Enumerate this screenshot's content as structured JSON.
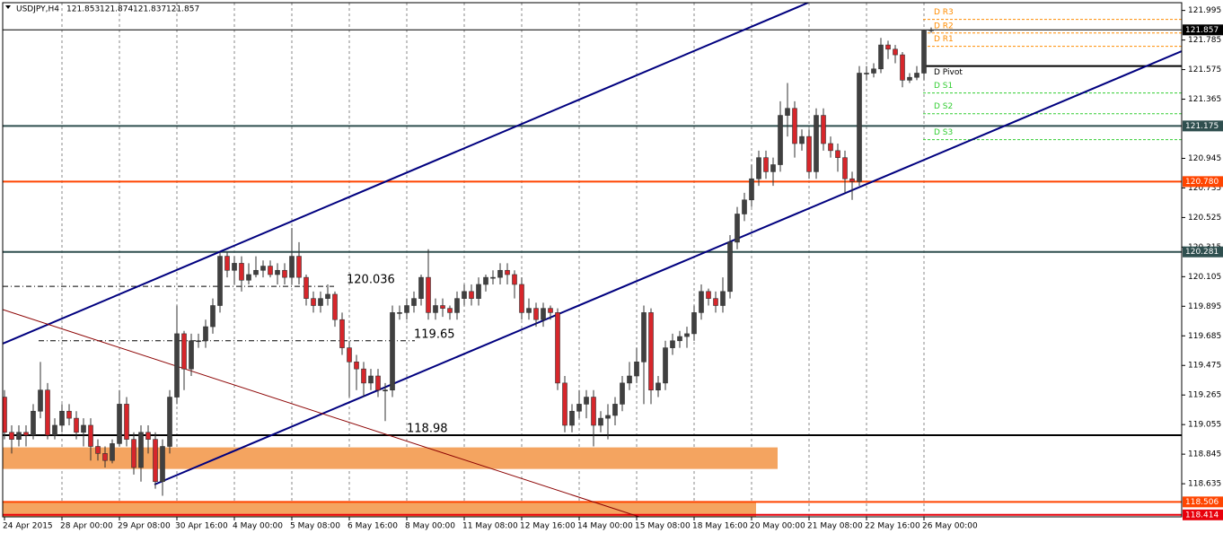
{
  "chart_data": {
    "type": "candlestick",
    "title": "USDJPY,H4",
    "categories": [
      "24 Apr 2015",
      null,
      null,
      null,
      null,
      null,
      null,
      null,
      "28 Apr 00:00",
      null,
      null,
      null,
      null,
      null,
      null,
      null,
      "29 Apr 08:00",
      null,
      null,
      null,
      null,
      null,
      null,
      null,
      "30 Apr 16:00",
      null,
      null,
      null,
      null,
      null,
      null,
      null,
      "4 May 00:00",
      null,
      null,
      null,
      null,
      null,
      null,
      null,
      "5 May 08:00",
      null,
      null,
      null,
      null,
      null,
      null,
      null,
      "6 May 16:00",
      null,
      null,
      null,
      null,
      null,
      null,
      null,
      "8 May 00:00",
      null,
      null,
      null,
      null,
      null,
      null,
      null,
      "11 May 08:00",
      null,
      null,
      null,
      null,
      null,
      null,
      null,
      "12 May 16:00",
      null,
      null,
      null,
      null,
      null,
      null,
      null,
      "14 May 00:00",
      null,
      null,
      null,
      null,
      null,
      null,
      null,
      "15 May 08:00",
      null,
      null,
      null,
      null,
      null,
      null,
      null,
      "18 May 16:00",
      null,
      null,
      null,
      null,
      null,
      null,
      null,
      "20 May 00:00",
      null,
      null,
      null,
      null,
      null,
      null,
      null,
      "21 May 08:00",
      null,
      null,
      null,
      null,
      null,
      null,
      null,
      "22 May 16:00",
      null,
      null,
      null,
      null,
      null,
      null,
      null,
      "26 May 00:00",
      null
    ],
    "open": [
      119.25,
      119.0,
      118.95,
      119.0,
      118.98,
      119.15,
      119.3,
      118.98,
      119.05,
      119.15,
      119.1,
      119.0,
      119.05,
      118.9,
      118.85,
      118.8,
      118.92,
      119.2,
      118.95,
      118.75,
      119.0,
      118.95,
      118.65,
      118.9,
      119.25,
      119.7,
      119.45,
      119.65,
      119.65,
      119.75,
      119.9,
      120.25,
      120.15,
      120.2,
      120.08,
      120.12,
      120.15,
      120.18,
      120.12,
      120.15,
      120.1,
      120.25,
      120.1,
      119.95,
      119.9,
      119.95,
      119.98,
      119.8,
      119.6,
      119.5,
      119.45,
      119.35,
      119.4,
      119.3,
      119.3,
      119.85,
      119.85,
      119.9,
      119.95,
      120.1,
      119.85,
      119.9,
      119.88,
      119.85,
      119.95,
      120.0,
      119.95,
      120.05,
      120.1,
      120.1,
      120.15,
      120.12,
      120.05,
      119.85,
      119.88,
      119.8,
      119.88,
      119.85,
      119.35,
      119.05,
      119.15,
      119.2,
      119.25,
      119.05,
      119.1,
      119.12,
      119.2,
      119.35,
      119.4,
      119.5,
      119.85,
      119.3,
      119.35,
      119.6,
      119.65,
      119.68,
      119.7,
      119.85,
      120.0,
      119.95,
      119.9,
      120.0,
      120.35,
      120.55,
      120.65,
      120.8,
      120.95,
      120.85,
      120.9,
      121.25,
      121.3,
      121.05,
      121.1,
      120.85,
      121.25,
      121.05,
      121.0,
      120.95,
      120.8,
      120.78,
      121.55,
      121.55,
      121.58,
      121.75,
      121.72,
      121.68,
      121.5,
      121.52,
      121.55,
      121.853
    ],
    "high": [
      119.3,
      119.05,
      119.05,
      119.05,
      119.2,
      119.5,
      119.35,
      119.1,
      119.2,
      119.2,
      119.15,
      119.1,
      119.1,
      118.95,
      118.9,
      118.95,
      119.3,
      119.25,
      119.0,
      119.05,
      119.05,
      119.0,
      118.95,
      119.3,
      119.9,
      119.72,
      119.7,
      119.7,
      119.8,
      119.95,
      120.28,
      120.28,
      120.25,
      120.25,
      120.2,
      120.25,
      120.22,
      120.22,
      120.2,
      120.2,
      120.45,
      120.35,
      120.12,
      120.0,
      120.0,
      120.05,
      120.0,
      119.85,
      119.65,
      119.55,
      119.5,
      119.45,
      119.45,
      119.35,
      119.9,
      119.9,
      119.95,
      120.0,
      120.12,
      120.3,
      119.95,
      119.95,
      119.9,
      120.0,
      120.05,
      120.05,
      120.1,
      120.12,
      120.15,
      120.2,
      120.2,
      120.15,
      120.1,
      119.95,
      119.92,
      119.92,
      119.9,
      119.88,
      119.4,
      119.2,
      119.3,
      119.3,
      119.3,
      119.15,
      119.2,
      119.25,
      119.4,
      119.5,
      119.6,
      119.9,
      119.88,
      119.4,
      119.65,
      119.7,
      119.72,
      119.75,
      119.9,
      120.05,
      120.02,
      120.0,
      120.1,
      120.4,
      120.6,
      120.7,
      120.9,
      121.0,
      121.0,
      120.95,
      121.35,
      121.48,
      121.35,
      121.15,
      121.15,
      121.3,
      121.3,
      121.1,
      121.05,
      121.0,
      120.85,
      121.6,
      121.6,
      121.62,
      121.8,
      121.78,
      121.75,
      121.7,
      121.55,
      121.6,
      121.86,
      121.874
    ],
    "low": [
      118.95,
      118.85,
      118.9,
      118.9,
      118.95,
      119.1,
      118.95,
      118.95,
      119.0,
      119.05,
      118.95,
      118.9,
      118.8,
      118.8,
      118.75,
      118.78,
      118.9,
      118.9,
      118.7,
      118.65,
      118.85,
      118.6,
      118.55,
      118.85,
      119.2,
      119.3,
      119.4,
      119.6,
      119.6,
      119.7,
      119.85,
      120.1,
      120.05,
      120.0,
      120.05,
      120.1,
      120.1,
      120.1,
      120.05,
      120.05,
      120.05,
      120.05,
      119.9,
      119.85,
      119.85,
      119.9,
      119.75,
      119.55,
      119.25,
      119.3,
      119.25,
      119.3,
      119.25,
      119.08,
      119.25,
      119.8,
      119.8,
      119.85,
      119.9,
      119.8,
      119.8,
      119.82,
      119.8,
      119.8,
      119.9,
      119.9,
      119.9,
      120.0,
      120.05,
      120.05,
      120.05,
      119.95,
      119.8,
      119.8,
      119.75,
      119.75,
      119.8,
      119.3,
      119.0,
      119.0,
      119.1,
      119.1,
      118.9,
      119.0,
      118.95,
      119.05,
      119.15,
      119.3,
      119.35,
      119.2,
      119.2,
      119.25,
      119.3,
      119.55,
      119.6,
      119.6,
      119.65,
      119.8,
      119.9,
      119.85,
      119.85,
      119.95,
      120.3,
      120.5,
      120.6,
      120.75,
      120.8,
      120.75,
      120.85,
      121.1,
      120.95,
      121.0,
      120.8,
      120.8,
      121.0,
      120.95,
      120.85,
      120.7,
      120.65,
      120.75,
      121.5,
      121.52,
      121.55,
      121.65,
      121.62,
      121.45,
      121.48,
      121.5,
      121.5,
      121.837
    ],
    "close": [
      119.0,
      118.95,
      119.0,
      118.98,
      119.15,
      119.3,
      118.98,
      119.05,
      119.15,
      119.1,
      119.0,
      119.05,
      118.9,
      118.85,
      118.8,
      118.92,
      119.2,
      118.95,
      118.75,
      119.0,
      118.95,
      118.65,
      118.9,
      119.25,
      119.7,
      119.45,
      119.65,
      119.65,
      119.75,
      119.9,
      120.25,
      120.15,
      120.2,
      120.08,
      120.12,
      120.15,
      120.18,
      120.12,
      120.15,
      120.1,
      120.25,
      120.1,
      119.95,
      119.9,
      119.95,
      119.98,
      119.8,
      119.6,
      119.5,
      119.45,
      119.35,
      119.4,
      119.3,
      119.3,
      119.85,
      119.85,
      119.9,
      119.95,
      120.1,
      119.85,
      119.9,
      119.88,
      119.85,
      119.95,
      120.0,
      119.95,
      120.05,
      120.1,
      120.1,
      120.15,
      120.12,
      120.05,
      119.85,
      119.88,
      119.8,
      119.88,
      119.85,
      119.35,
      119.05,
      119.15,
      119.2,
      119.25,
      119.05,
      119.1,
      119.12,
      119.2,
      119.35,
      119.4,
      119.5,
      119.85,
      119.3,
      119.35,
      119.6,
      119.65,
      119.68,
      119.7,
      119.85,
      120.0,
      119.95,
      119.9,
      120.0,
      120.35,
      120.55,
      120.65,
      120.8,
      120.95,
      120.85,
      120.9,
      121.25,
      121.3,
      121.05,
      121.1,
      120.85,
      121.25,
      121.05,
      121.0,
      120.95,
      120.8,
      120.78,
      121.55,
      121.55,
      121.58,
      121.75,
      121.72,
      121.68,
      121.5,
      121.52,
      121.55,
      121.85,
      121.857
    ],
    "up_color": "#404040",
    "down_color": "#d7262b",
    "ylim": [
      118.4,
      122.05
    ],
    "yticks": [
      121.995,
      121.785,
      121.575,
      121.365,
      120.945,
      {
        "value": 120.735,
        "label": "120.735"
      },
      120.525,
      120.315,
      120.105,
      119.895,
      119.685,
      119.475,
      119.265,
      119.055,
      118.845,
      118.635
    ],
    "grid": true,
    "levels": [
      {
        "price": 121.857,
        "color": "#000000"
      },
      {
        "price": 121.175,
        "color": "#2f4f4f"
      },
      {
        "price": {
          "value": 120.78,
          "label": "120.780"
        },
        "color": "#ff4500"
      },
      {
        "price": 120.281,
        "color": "#2f4f4f"
      },
      {
        "price": 118.506,
        "color": "#ff4500"
      },
      {
        "price": 118.414,
        "color": "#e8000b"
      }
    ],
    "annotations": [
      {
        "value": 120.036,
        "style": "dashdot"
      },
      {
        "value": 119.65,
        "style": "dashdot"
      },
      {
        "value": 118.98,
        "style": "solid"
      }
    ],
    "pivots": [
      {
        "label": "D R3",
        "value": 121.931,
        "color": "#ff8c00"
      },
      {
        "label": "D R2",
        "value": 121.835,
        "color": "#ff8c00"
      },
      {
        "label": "D R1",
        "value": 121.74,
        "color": "#ff8c00"
      },
      {
        "label": "D Pivot",
        "value": 121.6,
        "color": "#000000"
      },
      {
        "label": "D S1",
        "value": 121.409,
        "color": "#32cd32"
      },
      {
        "label": "D S2",
        "value": 121.262,
        "color": "#32cd32"
      },
      {
        "label": "D S3",
        "value": 121.078,
        "color": "#32cd32"
      }
    ],
    "zones": [
      {
        "from": 118.74,
        "to": 118.893,
        "color": "#f4a460"
      },
      {
        "from": 118.4,
        "to": 118.505,
        "color": "#f4a460"
      }
    ]
  }
}
